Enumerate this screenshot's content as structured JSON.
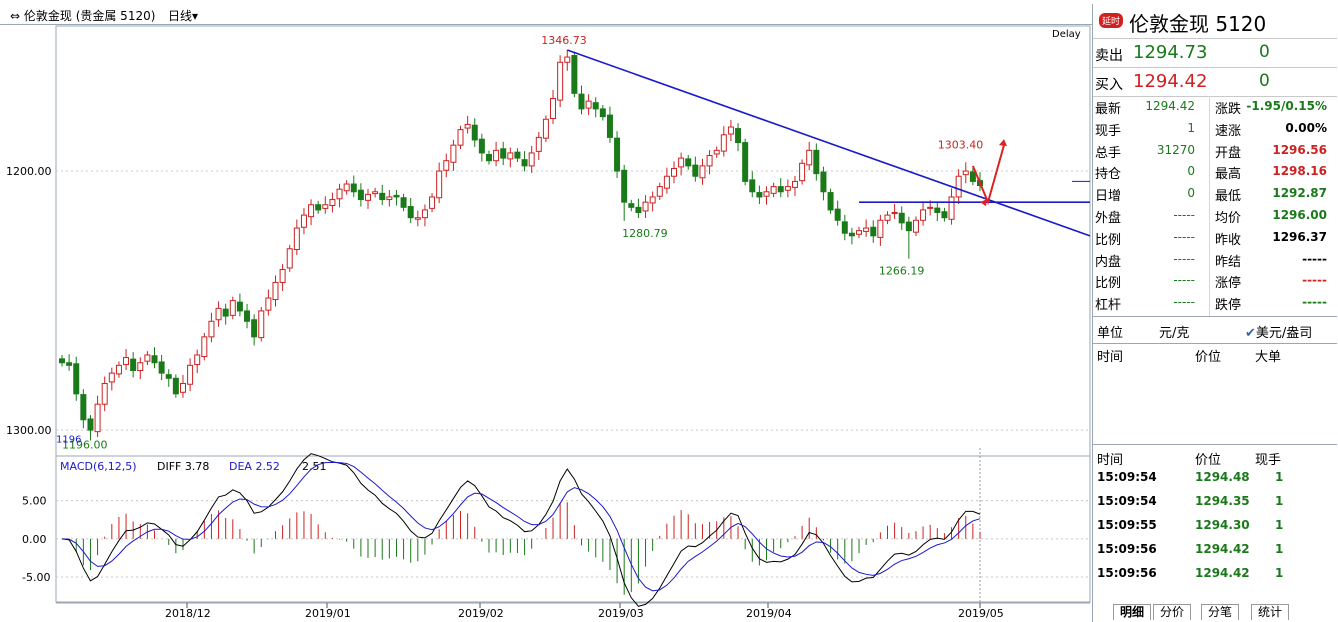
{
  "header": {
    "title": "伦敦金现 (贵金属 5120)",
    "period": "日线"
  },
  "chart_labels": {
    "delay": "Delay",
    "y_ticks": [
      "1300.00",
      "1200.00"
    ],
    "x_ticks": [
      "2018/12",
      "2019/01",
      "2019/02",
      "2019/03",
      "2019/04",
      "2019/05"
    ],
    "annotations": [
      "1346.73",
      "1280.79",
      "1266.19",
      "1303.40",
      "1196.00"
    ],
    "low_tag": "1196"
  },
  "macd": {
    "label": "MACD(6,12,5)",
    "diff": "DIFF 3.78",
    "dea": "DEA 2.52",
    "macd": "2.51",
    "y_ticks": [
      "5.00",
      "0.00",
      "-5.00"
    ]
  },
  "chart_data": {
    "type": "candlestick",
    "title": "伦敦金现 (贵金属 5120) 日线",
    "ylim": [
      1190,
      1356
    ],
    "x_ticks": [
      "2018/12",
      "2019/01",
      "2019/02",
      "2019/03",
      "2019/04",
      "2019/05"
    ],
    "y_ticks": [
      1200,
      1300
    ],
    "labeled_points": [
      {
        "label": "1346.73",
        "value": 1346.73
      },
      {
        "label": "1280.79",
        "value": 1280.79
      },
      {
        "label": "1266.19",
        "value": 1266.19
      },
      {
        "label": "1303.40",
        "value": 1303.4
      },
      {
        "label": "1196.00",
        "value": 1196.0
      }
    ],
    "closes": [
      1226,
      1225,
      1214,
      1204,
      1200,
      1210,
      1218,
      1222,
      1225,
      1228,
      1223,
      1226,
      1229,
      1226,
      1222,
      1220,
      1214,
      1218,
      1225,
      1229,
      1236,
      1242,
      1247,
      1244,
      1250,
      1246,
      1242,
      1236,
      1246,
      1251,
      1257,
      1262,
      1270,
      1278,
      1283,
      1287,
      1285,
      1287,
      1289,
      1293,
      1295,
      1292,
      1289,
      1291,
      1292,
      1289,
      1290,
      1290,
      1286,
      1282,
      1282,
      1285,
      1290,
      1300,
      1304,
      1310,
      1316,
      1318,
      1312,
      1307,
      1304,
      1308,
      1305,
      1307,
      1305,
      1302,
      1307,
      1313,
      1320,
      1328,
      1342,
      1344,
      1330,
      1324,
      1327,
      1324,
      1321,
      1313,
      1300,
      1288,
      1286,
      1284,
      1288,
      1290,
      1294,
      1298,
      1301,
      1305,
      1302,
      1298,
      1302,
      1306,
      1308,
      1314,
      1317,
      1311,
      1296,
      1292,
      1290,
      1292,
      1294,
      1292,
      1294,
      1296,
      1303,
      1308,
      1299,
      1292,
      1285,
      1281,
      1276,
      1275,
      1277,
      1278,
      1275,
      1281,
      1283,
      1284,
      1280,
      1277,
      1281,
      1285,
      1286,
      1284,
      1282,
      1290,
      1298,
      1300,
      1296,
      1294.42
    ],
    "ohlc_note": "daily candles; red = up (close > open), green = down",
    "trendline_from": 1346.73,
    "horizontal_level": 1288,
    "macd": {
      "params": "MACD(6,12,5)",
      "diff": 3.78,
      "dea": 2.52,
      "macd": 2.51,
      "ylim": [
        -8,
        9
      ]
    }
  },
  "quote": {
    "badge": "延时",
    "name": "伦敦金现  5120",
    "sell_label": "卖出",
    "sell_price": "1294.73",
    "sell_vol": "0",
    "buy_label": "买入",
    "buy_price": "1294.42",
    "buy_vol": "0",
    "stats": [
      {
        "a": "最新",
        "av": "1294.42",
        "ac": "#1a7a1a",
        "b": "涨跌",
        "bv": "-1.95/0.15%",
        "bc": "#1a7a1a"
      },
      {
        "a": "现手",
        "av": "1",
        "ac": "#1a7a1a",
        "b": "速涨",
        "bv": "0.00%",
        "bc": "#000000"
      },
      {
        "a": "总手",
        "av": "31270",
        "ac": "#1a7a1a",
        "b": "开盘",
        "bv": "1296.56",
        "bc": "#cc2222"
      },
      {
        "a": "持仓",
        "av": "0",
        "ac": "#1a7a1a",
        "b": "最高",
        "bv": "1298.16",
        "bc": "#cc2222"
      },
      {
        "a": "日增",
        "av": "0",
        "ac": "#1a7a1a",
        "b": "最低",
        "bv": "1292.87",
        "bc": "#1a7a1a"
      },
      {
        "a": "外盘",
        "av": "-----",
        "ac": "#1a7a1a",
        "b": "均价",
        "bv": "1296.00",
        "bc": "#1a7a1a"
      },
      {
        "a": "比例",
        "av": "-----",
        "ac": "#1a7a1a",
        "b": "昨收",
        "bv": "1296.37",
        "bc": "#000000"
      },
      {
        "a": "内盘",
        "av": "-----",
        "ac": "#1a7a1a",
        "b": "昨结",
        "bv": "-----",
        "bc": "#000000"
      },
      {
        "a": "比例",
        "av": "-----",
        "ac": "#1a7a1a",
        "b": "涨停",
        "bv": "-----",
        "bc": "#cc2222"
      },
      {
        "a": "杠杆",
        "av": "-----",
        "ac": "#1a7a1a",
        "b": "跌停",
        "bv": "-----",
        "bc": "#1a7a1a"
      }
    ],
    "unit_label": "单位",
    "unit_value": "元/克",
    "unit_option": "美元/盎司",
    "detail_header": {
      "time": "时间",
      "price": "价位",
      "size": "大单"
    },
    "tick_header": {
      "time": "时间",
      "price": "价位",
      "vol": "现手"
    },
    "ticks": [
      {
        "time": "15:09:54",
        "price": "1294.48",
        "vol": "1"
      },
      {
        "time": "15:09:54",
        "price": "1294.35",
        "vol": "1"
      },
      {
        "time": "15:09:55",
        "price": "1294.30",
        "vol": "1"
      },
      {
        "time": "15:09:56",
        "price": "1294.42",
        "vol": "1"
      },
      {
        "time": "15:09:56",
        "price": "1294.42",
        "vol": "1"
      }
    ],
    "tabs": [
      "明细",
      "分价",
      "分笔",
      "统计"
    ]
  }
}
